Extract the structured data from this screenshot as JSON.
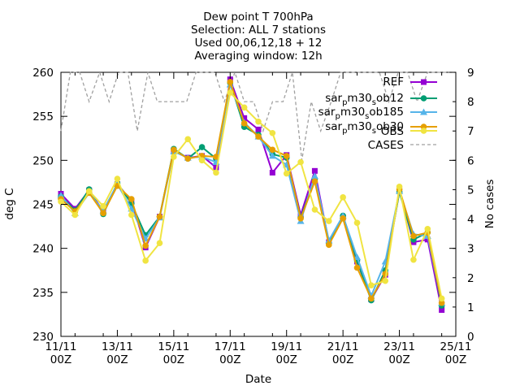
{
  "chart_data": {
    "type": "line",
    "title_lines": [
      "Dew point T 700hPa",
      "Selection: ALL       7 stations",
      "Used 00,06,12,18 + 12",
      "Averaging window: 12h"
    ],
    "xlabel": "Date",
    "ylabel": "deg C",
    "y2label": "No cases",
    "x_ticks": [
      {
        "line1": "11/11",
        "line2": "00Z"
      },
      {
        "line1": "13/11",
        "line2": "00Z"
      },
      {
        "line1": "15/11",
        "line2": "00Z"
      },
      {
        "line1": "17/11",
        "line2": "00Z"
      },
      {
        "line1": "19/11",
        "line2": "00Z"
      },
      {
        "line1": "21/11",
        "line2": "00Z"
      },
      {
        "line1": "23/11",
        "line2": "00Z"
      },
      {
        "line1": "25/11",
        "line2": "00Z"
      }
    ],
    "x_range_hours": [
      0,
      336
    ],
    "ylim": [
      230,
      260
    ],
    "y_ticks": [
      230,
      235,
      240,
      245,
      250,
      255,
      260
    ],
    "y2lim": [
      0,
      9
    ],
    "y2_ticks": [
      0,
      1,
      2,
      3,
      4,
      5,
      6,
      7,
      8,
      9
    ],
    "x_hours": [
      0,
      12,
      24,
      36,
      48,
      60,
      72,
      84,
      96,
      108,
      120,
      132,
      144,
      156,
      168,
      180,
      192,
      204,
      216,
      228,
      240,
      252,
      264,
      276,
      288,
      300,
      312,
      324,
      336
    ],
    "series": [
      {
        "name": "REF",
        "color": "#9400d3",
        "marker": "square",
        "values": [
          246.2,
          244.5,
          246.6,
          244.2,
          247.3,
          245.4,
          240.1,
          243.6,
          251.1,
          250.3,
          250.5,
          249.2,
          259.2,
          254.8,
          253.5,
          248.6,
          250.6,
          243.8,
          248.8,
          240.7,
          243.5,
          238.5,
          234.2,
          237.0,
          246.6,
          240.7,
          241.0,
          233.0,
          null
        ]
      },
      {
        "name": "sar_pm30_sob12",
        "color": "#009e73",
        "marker": "circle",
        "values": [
          245.9,
          244.3,
          246.7,
          243.9,
          247.4,
          245.1,
          241.5,
          243.6,
          251.3,
          250.2,
          251.5,
          250.2,
          258.8,
          253.8,
          252.9,
          250.7,
          250.3,
          243.5,
          247.9,
          240.6,
          243.7,
          238.6,
          234.1,
          237.5,
          246.4,
          241.0,
          241.8,
          233.5,
          null
        ]
      },
      {
        "name": "sar_pm30_sob185",
        "color": "#56b4e9",
        "marker": "triangle",
        "values": [
          246.0,
          244.0,
          246.3,
          244.3,
          247.3,
          244.5,
          241.1,
          243.5,
          251.0,
          250.3,
          250.4,
          249.8,
          258.6,
          254.3,
          252.7,
          250.5,
          249.5,
          243.1,
          248.2,
          240.9,
          243.7,
          239.0,
          234.6,
          238.5,
          246.5,
          241.6,
          241.4,
          233.8,
          null
        ]
      },
      {
        "name": "sar_pm30_sob30",
        "color": "#e69f00",
        "marker": "circle",
        "values": [
          245.6,
          244.2,
          246.3,
          244.0,
          247.1,
          245.6,
          240.3,
          243.6,
          251.2,
          250.2,
          250.5,
          250.4,
          258.9,
          254.2,
          252.7,
          251.2,
          250.5,
          243.4,
          247.6,
          240.4,
          243.4,
          237.8,
          234.3,
          237.1,
          246.7,
          241.4,
          241.8,
          233.8,
          null
        ]
      },
      {
        "name": "OBS",
        "color": "#f0e442",
        "marker": "circle",
        "values": [
          245.3,
          243.8,
          246.5,
          244.8,
          247.9,
          243.8,
          238.6,
          240.6,
          250.4,
          252.4,
          250.0,
          248.6,
          257.7,
          256.0,
          254.4,
          253.1,
          248.5,
          249.8,
          244.4,
          243.1,
          245.8,
          242.9,
          235.8,
          236.3,
          247.0,
          238.7,
          242.2,
          234.3,
          null
        ]
      },
      {
        "name": "CASES",
        "color": "#a0a0a0",
        "marker": "none",
        "axis": "y2",
        "dashed": true,
        "values": [
          7,
          9,
          9,
          8,
          9,
          8,
          9,
          9,
          7,
          9,
          8,
          8,
          8,
          8,
          9,
          9,
          9,
          8,
          9,
          8,
          8,
          7,
          8,
          8,
          9,
          6,
          8,
          7,
          8,
          9,
          9,
          9,
          9,
          9,
          8,
          9,
          9,
          8,
          9,
          9,
          9
        ],
        "x_hours": [
          0,
          8,
          16,
          24,
          33,
          41,
          49,
          57,
          65,
          74,
          82,
          90,
          98,
          107,
          115,
          123,
          131,
          139,
          148,
          156,
          164,
          172,
          180,
          189,
          197,
          205,
          213,
          221,
          230,
          238,
          246,
          254,
          262,
          271,
          279,
          287,
          295,
          303,
          312,
          320,
          336
        ]
      }
    ],
    "legend_position": "top-right",
    "grid": false
  }
}
